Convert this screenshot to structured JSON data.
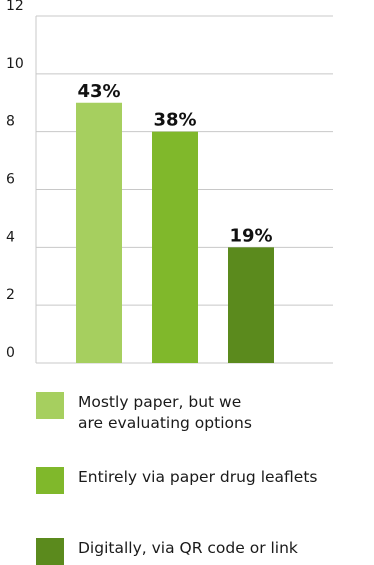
{
  "chart_data": {
    "type": "bar",
    "categories": [
      "Mostly paper, but we are evaluating options",
      "Entirely via paper drug leaflets",
      "Digitally, via QR code or link"
    ],
    "values": [
      9,
      8,
      4
    ],
    "data_labels": [
      "43%",
      "38%",
      "19%"
    ],
    "colors": [
      "#a6cf5f",
      "#80b82b",
      "#5b8a1d"
    ],
    "ylim": [
      0,
      12
    ],
    "yticks": [
      0,
      2,
      4,
      6,
      8,
      10,
      12
    ],
    "grid": true,
    "legend_placement": "bottom",
    "title": "",
    "xlabel": "",
    "ylabel": ""
  },
  "legend": {
    "items": [
      {
        "label_lines": [
          "Mostly paper, but we",
          "are evaluating options"
        ],
        "color": "#a6cf5f"
      },
      {
        "label_lines": [
          "Entirely via paper drug leaflets"
        ],
        "color": "#80b82b"
      },
      {
        "label_lines": [
          "Digitally, via QR code or link"
        ],
        "color": "#5b8a1d"
      }
    ]
  },
  "style": {
    "gridline_color": "#c8c8c8"
  }
}
